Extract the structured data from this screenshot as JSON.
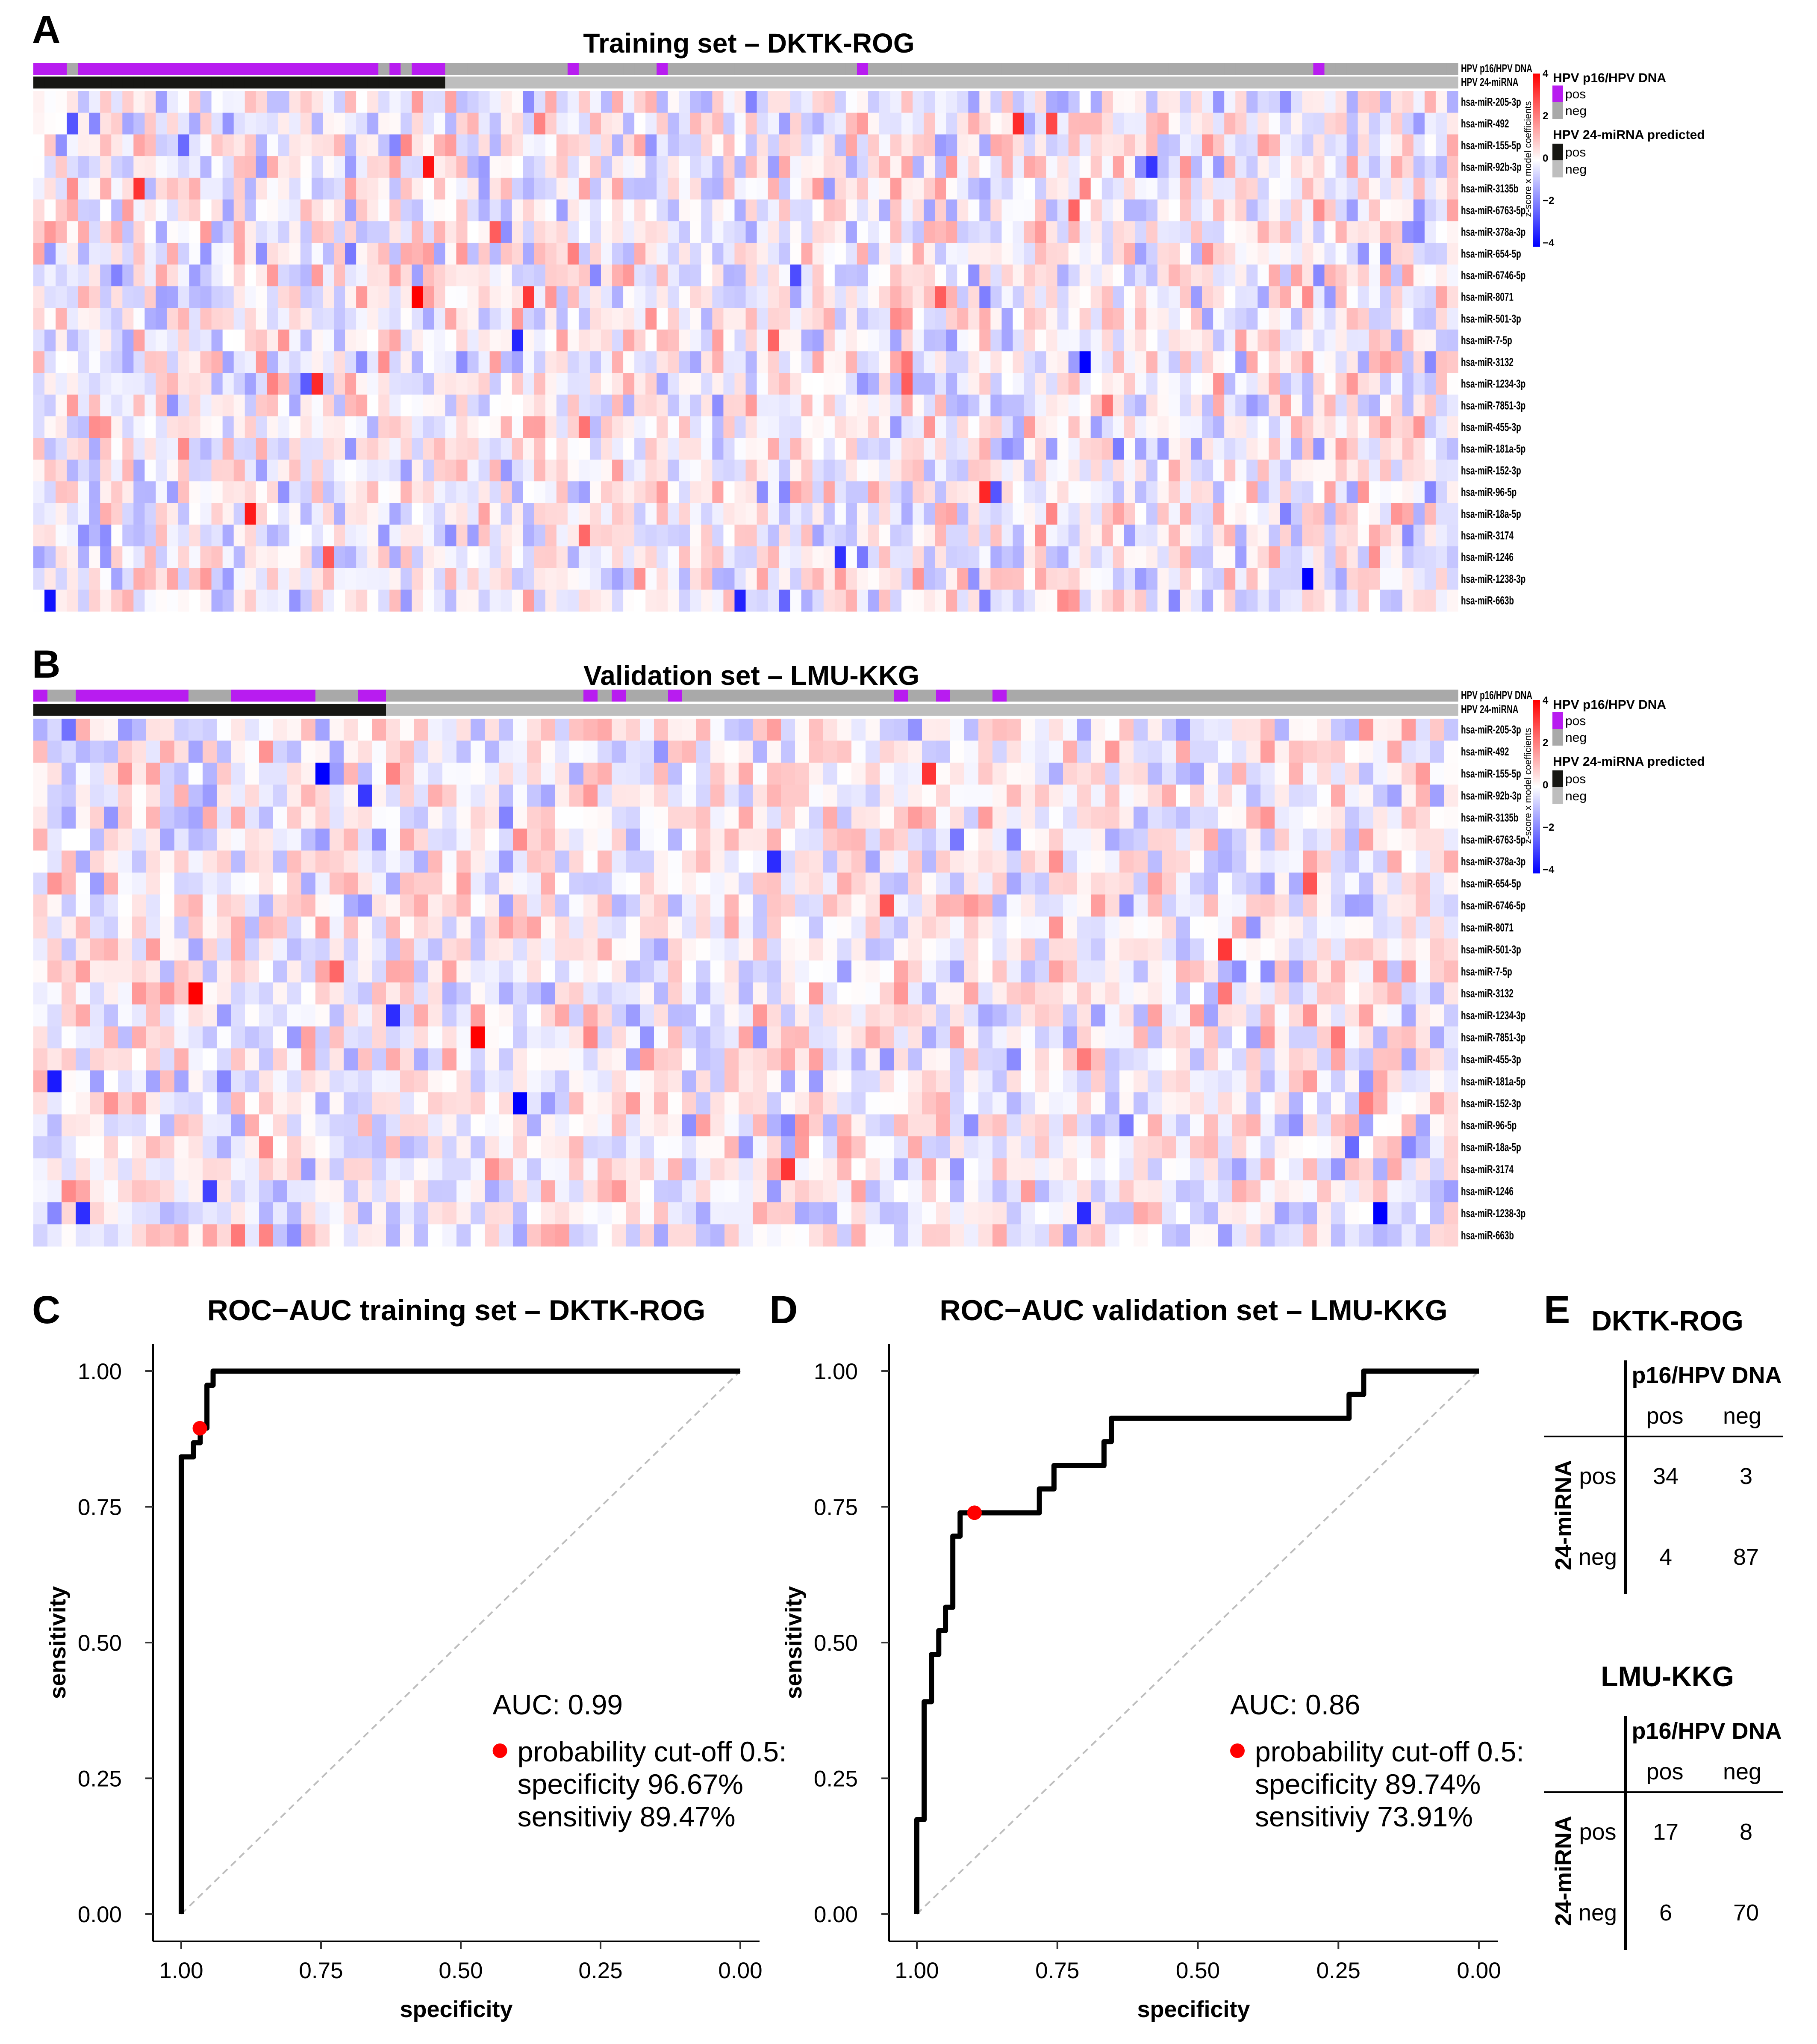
{
  "panels": {
    "a": "A",
    "b": "B",
    "c": "C",
    "d": "D",
    "e": "E"
  },
  "heatmaps": [
    {
      "title": "Training set – DKTK-ROG",
      "n_samples": 128,
      "annotation_labels": [
        "HPV p16/HPV DNA",
        "HPV 24-miRNA"
      ],
      "p16_runs": [
        [
          "pos",
          3
        ],
        [
          "neg",
          1
        ],
        [
          "pos",
          27
        ],
        [
          "neg",
          1
        ],
        [
          "pos",
          1
        ],
        [
          "neg",
          1
        ],
        [
          "pos",
          3
        ],
        [
          "neg",
          11
        ],
        [
          "pos",
          1
        ],
        [
          "neg",
          7
        ],
        [
          "pos",
          1
        ],
        [
          "neg",
          17
        ],
        [
          "pos",
          1
        ],
        [
          "neg",
          40
        ],
        [
          "pos",
          1
        ],
        [
          "neg",
          12
        ]
      ],
      "predicted_runs": [
        [
          "pos",
          37
        ],
        [
          "neg",
          91
        ]
      ],
      "seed": 11
    },
    {
      "title": "Validation set – LMU-KKG",
      "n_samples": 101,
      "annotation_labels": [
        "HPV p16/HPV DNA",
        "HPV 24-miRNA"
      ],
      "p16_runs": [
        [
          "pos",
          1
        ],
        [
          "neg",
          2
        ],
        [
          "pos",
          8
        ],
        [
          "neg",
          3
        ],
        [
          "pos",
          6
        ],
        [
          "neg",
          3
        ],
        [
          "pos",
          2
        ],
        [
          "neg",
          14
        ],
        [
          "pos",
          1
        ],
        [
          "neg",
          1
        ],
        [
          "pos",
          1
        ],
        [
          "neg",
          3
        ],
        [
          "pos",
          1
        ],
        [
          "neg",
          15
        ],
        [
          "pos",
          1
        ],
        [
          "neg",
          2
        ],
        [
          "pos",
          1
        ],
        [
          "neg",
          3
        ],
        [
          "pos",
          1
        ],
        [
          "neg",
          32
        ]
      ],
      "predicted_runs": [
        [
          "pos",
          25
        ],
        [
          "neg",
          76
        ]
      ],
      "seed": 29
    }
  ],
  "mirnas": [
    "hsa-miR-205-3p",
    "hsa-miR-492",
    "hsa-miR-155-5p",
    "hsa-miR-92b-3p",
    "hsa-miR-3135b",
    "hsa-miR-6763-5p",
    "hsa-miR-378a-3p",
    "hsa-miR-654-5p",
    "hsa-miR-6746-5p",
    "hsa-miR-8071",
    "hsa-miR-501-3p",
    "hsa-miR-7-5p",
    "hsa-miR-3132",
    "hsa-miR-1234-3p",
    "hsa-miR-7851-3p",
    "hsa-miR-455-3p",
    "hsa-miR-181a-5p",
    "hsa-miR-152-3p",
    "hsa-miR-96-5p",
    "hsa-miR-18a-5p",
    "hsa-miR-3174",
    "hsa-miR-1246",
    "hsa-miR-1238-3p",
    "hsa-miR-663b"
  ],
  "legend": {
    "colorbar_label": "z-score x model coefficients",
    "colorbar_ticks": [
      "4",
      "2",
      "0",
      "−2",
      "−4"
    ],
    "colorbar_range": [
      -4,
      4
    ],
    "p16_title": "HPV p16/HPV DNA",
    "pred_title": "HPV 24-miRNA predicted",
    "pos": "pos",
    "neg": "neg"
  },
  "colors": {
    "pos_p16": "#B81CF0",
    "neg_p16": "#A9A9A9",
    "pos_pred": "#171713",
    "neg_pred": "#BEBEBE",
    "high": "#FF0000",
    "low": "#0000FF",
    "cutoff_point": "#FF0000"
  },
  "chart_data": [
    {
      "type": "line",
      "title": "ROC−AUC training set – DKTK-ROG",
      "xlabel": "specificity",
      "ylabel": "sensitivity",
      "xlim": [
        1,
        0
      ],
      "ylim": [
        0,
        1
      ],
      "xticks": [
        "1.00",
        "0.75",
        "0.50",
        "0.25",
        "0.00"
      ],
      "yticks": [
        "0.00",
        "0.25",
        "0.50",
        "0.75",
        "1.00"
      ],
      "roc": [
        [
          1,
          0
        ],
        [
          1,
          0.842
        ],
        [
          0.978,
          0.842
        ],
        [
          0.978,
          0.868
        ],
        [
          0.966,
          0.868
        ],
        [
          0.966,
          0.895
        ],
        [
          0.954,
          0.895
        ],
        [
          0.954,
          0.974
        ],
        [
          0.943,
          0.974
        ],
        [
          0.943,
          1
        ],
        [
          0,
          1
        ]
      ],
      "cutoff_point": [
        0.9667,
        0.8947
      ],
      "auc_text": "AUC:  0.99",
      "cutoff_lines": [
        "probability cut-off 0.5:",
        "specificity 96.67%",
        "sensitiviy 89.47%"
      ]
    },
    {
      "type": "line",
      "title": "ROC−AUC validation set – LMU-KKG",
      "xlabel": "specificity",
      "ylabel": "sensitivity",
      "xlim": [
        1,
        0
      ],
      "ylim": [
        0,
        1
      ],
      "xticks": [
        "1.00",
        "0.75",
        "0.50",
        "0.25",
        "0.00"
      ],
      "yticks": [
        "0.00",
        "0.25",
        "0.50",
        "0.75",
        "1.00"
      ],
      "roc": [
        [
          1,
          0
        ],
        [
          1,
          0.174
        ],
        [
          0.987,
          0.174
        ],
        [
          0.987,
          0.391
        ],
        [
          0.974,
          0.391
        ],
        [
          0.974,
          0.478
        ],
        [
          0.961,
          0.478
        ],
        [
          0.961,
          0.522
        ],
        [
          0.949,
          0.522
        ],
        [
          0.949,
          0.565
        ],
        [
          0.936,
          0.565
        ],
        [
          0.936,
          0.696
        ],
        [
          0.923,
          0.696
        ],
        [
          0.923,
          0.739
        ],
        [
          0.782,
          0.739
        ],
        [
          0.782,
          0.783
        ],
        [
          0.756,
          0.783
        ],
        [
          0.756,
          0.826
        ],
        [
          0.667,
          0.826
        ],
        [
          0.667,
          0.87
        ],
        [
          0.654,
          0.87
        ],
        [
          0.654,
          0.913
        ],
        [
          0.231,
          0.913
        ],
        [
          0.231,
          0.957
        ],
        [
          0.205,
          0.957
        ],
        [
          0.205,
          1
        ],
        [
          0,
          1
        ]
      ],
      "cutoff_point": [
        0.8974,
        0.7391
      ],
      "auc_text": "AUC:  0.86",
      "cutoff_lines": [
        "probability cut-off 0.5:",
        "specificity 89.74%",
        "sensitiviy 73.91%"
      ]
    },
    {
      "type": "table",
      "tables": [
        {
          "title": "DKTK-ROG",
          "col_header": "p16/HPV DNA",
          "row_header": "24-miRNA",
          "cols": [
            "pos",
            "neg"
          ],
          "rows": [
            "pos",
            "neg"
          ],
          "values": [
            [
              "34",
              "3"
            ],
            [
              "4",
              "87"
            ]
          ]
        },
        {
          "title": "LMU-KKG",
          "col_header": "p16/HPV DNA",
          "row_header": "24-miRNA",
          "cols": [
            "pos",
            "neg"
          ],
          "rows": [
            "pos",
            "neg"
          ],
          "values": [
            [
              "17",
              "8"
            ],
            [
              "6",
              "70"
            ]
          ]
        }
      ]
    }
  ]
}
